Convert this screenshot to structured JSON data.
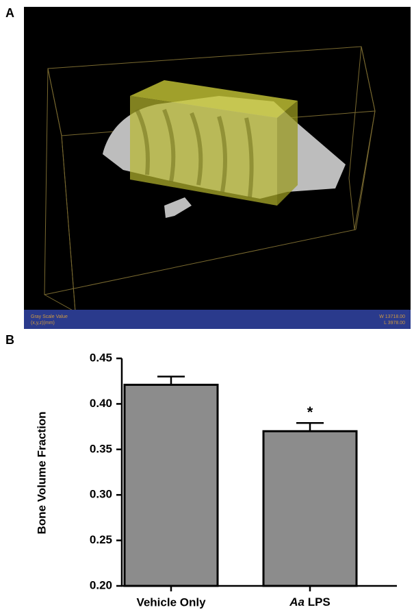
{
  "panel_a": {
    "label": "A",
    "footer_left": [
      "Gray Scale Value",
      "(x,y,z)(mm)"
    ],
    "footer_right": [
      "W  13718.00",
      "L  3978.00"
    ]
  },
  "chart_data": {
    "type": "bar",
    "panel_label": "B",
    "y_label": "Bone Volume Fraction",
    "categories": [
      "Vehicle Only",
      "Aa LPS"
    ],
    "values": [
      0.421,
      0.37
    ],
    "errors": [
      0.009,
      0.009
    ],
    "value_labels": [
      null,
      "*"
    ],
    "color": "#8c8c8c",
    "ylim": [
      0.2,
      0.45
    ],
    "yticks": [
      {
        "value": 0.2,
        "label": "0.20"
      },
      0.25,
      {
        "value": 0.3,
        "label": "0.30"
      },
      0.35,
      {
        "value": 0.4,
        "label": "0.40"
      },
      0.45
    ]
  }
}
